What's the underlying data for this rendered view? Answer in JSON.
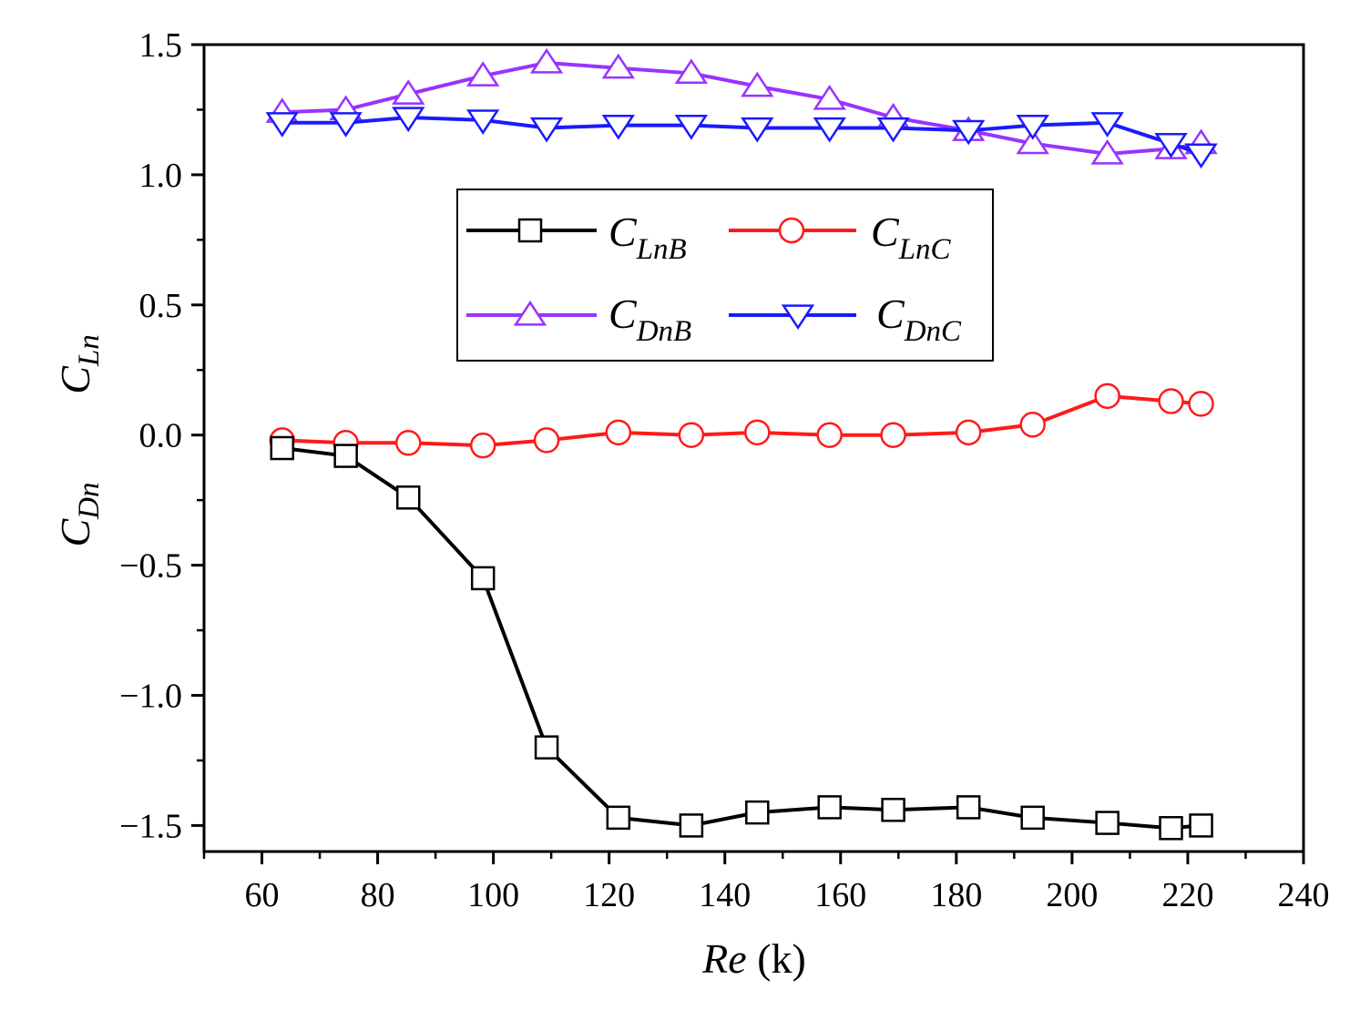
{
  "chart_data": {
    "type": "line",
    "xlabel": {
      "italic": "Re",
      "rest": " (k)"
    },
    "ylabel": {
      "lift": {
        "main": "C",
        "sub": "Ln"
      },
      "drag": {
        "main": "C",
        "sub": "Dn"
      }
    },
    "xlim": [
      50,
      240
    ],
    "ylim": [
      -1.6,
      1.5
    ],
    "xticks": [
      60,
      80,
      100,
      120,
      140,
      160,
      180,
      200,
      220,
      240
    ],
    "yticks": [
      1.5,
      1.0,
      0.5,
      0.0,
      -0.5,
      -1.0,
      -1.5
    ],
    "ytick_labels": [
      "1.5",
      "1.0",
      "0.5",
      "0.0",
      "−0.5",
      "−1.0",
      "−1.5"
    ],
    "x": [
      63.5,
      74.5,
      85.3,
      98.2,
      109.2,
      121.6,
      134.2,
      145.6,
      158.1,
      169.1,
      182.1,
      193.2,
      206.1,
      217.1,
      222.3
    ],
    "legend_position": "center",
    "series": [
      {
        "name": "CLnB",
        "main": "C",
        "sub": "LnB",
        "color": "#000000",
        "marker": "square",
        "values": [
          -0.05,
          -0.08,
          -0.24,
          -0.55,
          -1.2,
          -1.47,
          -1.5,
          -1.45,
          -1.43,
          -1.44,
          -1.43,
          -1.47,
          -1.49,
          -1.51,
          -1.5
        ]
      },
      {
        "name": "CLnC",
        "main": "C",
        "sub": "LnC",
        "color": "#ff1a1a",
        "marker": "circle",
        "values": [
          -0.02,
          -0.03,
          -0.03,
          -0.04,
          -0.02,
          0.01,
          0.0,
          0.01,
          0.0,
          0.0,
          0.01,
          0.04,
          0.15,
          0.13,
          0.12
        ]
      },
      {
        "name": "CDnB",
        "main": "C",
        "sub": "DnB",
        "color": "#9933ff",
        "marker": "triangle-up",
        "values": [
          1.24,
          1.25,
          1.31,
          1.38,
          1.43,
          1.41,
          1.39,
          1.34,
          1.29,
          1.22,
          1.17,
          1.12,
          1.08,
          1.1,
          1.12
        ]
      },
      {
        "name": "CDnC",
        "main": "C",
        "sub": "DnC",
        "color": "#1a1aff",
        "marker": "triangle-down",
        "values": [
          1.2,
          1.2,
          1.22,
          1.21,
          1.18,
          1.19,
          1.19,
          1.18,
          1.18,
          1.18,
          1.17,
          1.19,
          1.2,
          1.12,
          1.08
        ]
      }
    ]
  }
}
